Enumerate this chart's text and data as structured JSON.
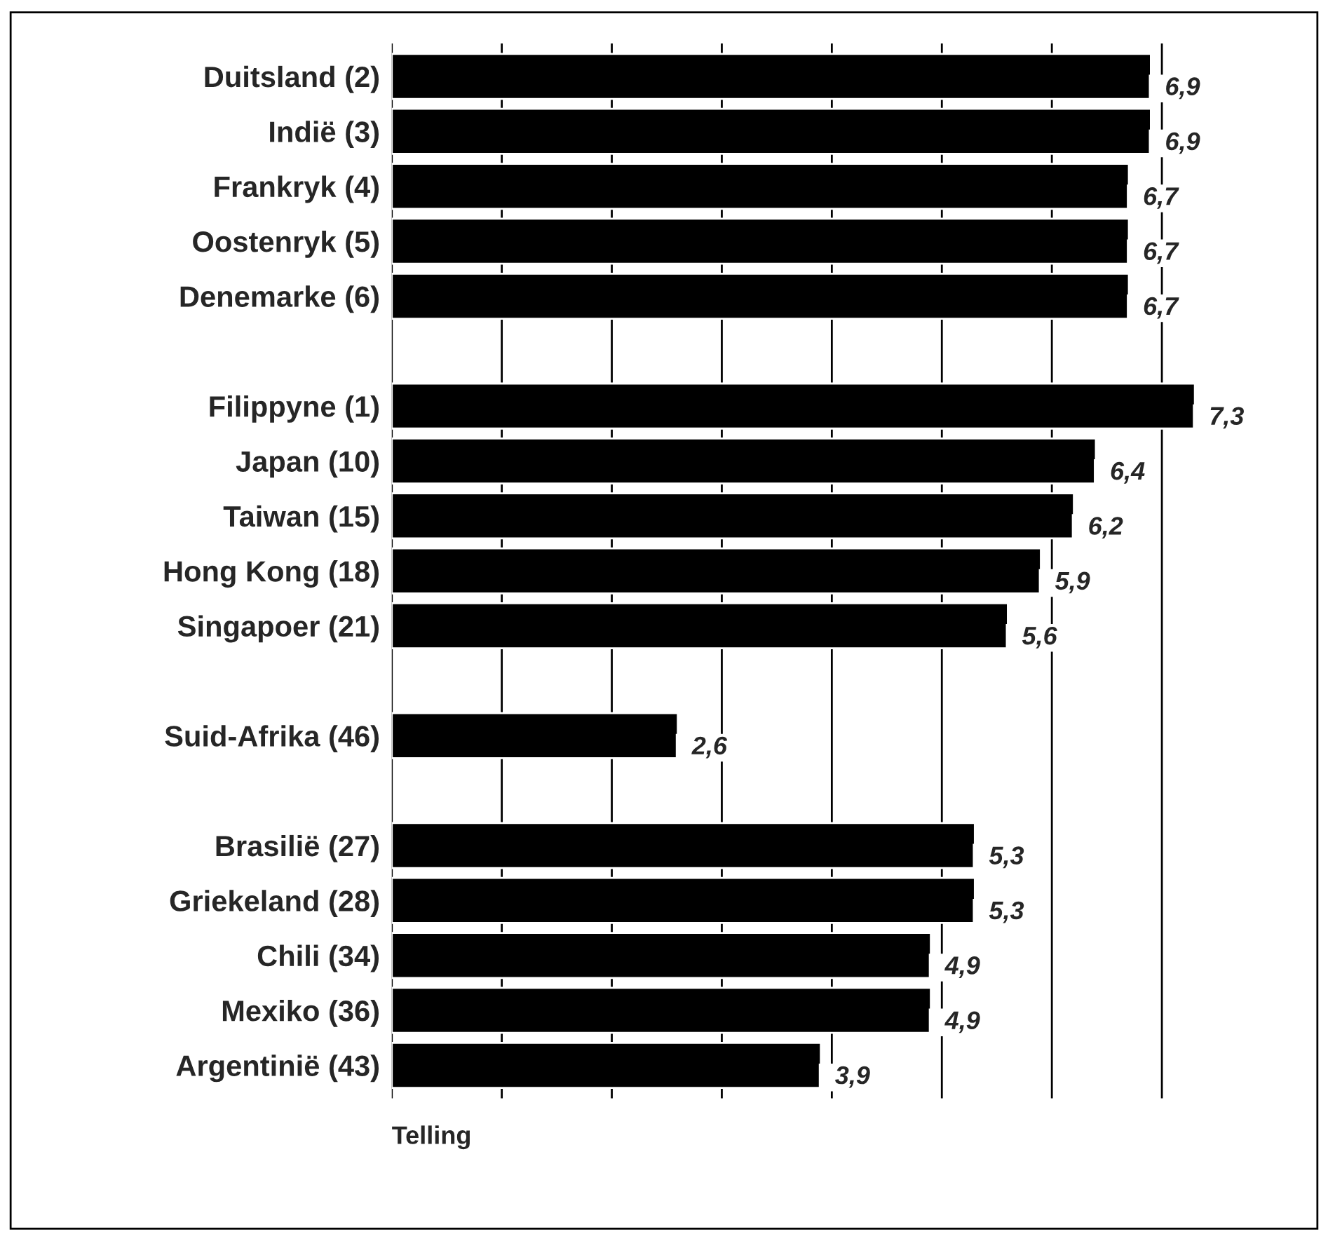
{
  "chart_data": {
    "type": "bar",
    "orientation": "horizontal",
    "xlabel": "Telling",
    "categories": [
      "Duitsland (2)",
      "Indië (3)",
      "Frankryk (4)",
      "Oostenryk (5)",
      "Denemarke (6)",
      null,
      "Filippyne (1)",
      "Japan (10)",
      "Taiwan (15)",
      "Hong Kong (18)",
      "Singapoer (21)",
      null,
      "Suid-Afrika (46)",
      null,
      "Brasilië (27)",
      "Griekeland (28)",
      "Chili (34)",
      "Mexiko (36)",
      "Argentinië (43)"
    ],
    "values": [
      6.9,
      6.9,
      6.7,
      6.7,
      6.7,
      null,
      7.3,
      6.4,
      6.2,
      5.9,
      5.6,
      null,
      2.6,
      null,
      5.3,
      5.3,
      4.9,
      4.9,
      3.9
    ],
    "value_labels": [
      "6,9",
      "6,9",
      "6,7",
      "6,7",
      "6,7",
      null,
      "7,3",
      "6,4",
      "6,2",
      "5,9",
      "5,6",
      null,
      "2,6",
      null,
      "5,3",
      "5,3",
      "4,9",
      "4,9",
      "3,9"
    ],
    "color": "#000000",
    "tick_labels": "y",
    "grid": "x",
    "legend": false
  }
}
